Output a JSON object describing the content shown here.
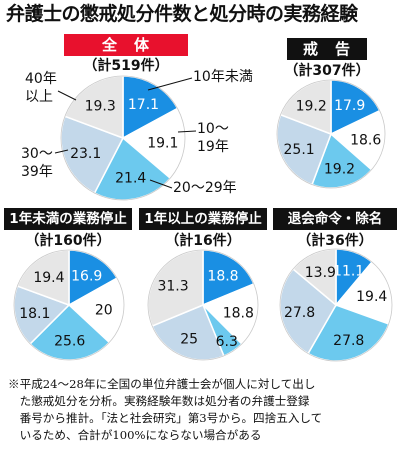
{
  "title": "弁護士の懲戒処分件数と処分時の実務経験",
  "colors": {
    "seg1": "#1a8fe3",
    "seg2": "#ffffff",
    "seg3": "#6cc9ee",
    "seg4": "#c3d8ea",
    "seg5": "#e6e6e6",
    "red": "#e8112d",
    "black": "#111111"
  },
  "chart_data": [
    {
      "type": "pie",
      "title": "全　体",
      "total": "（計519件）",
      "categories": [
        "10年未満",
        "10～19年",
        "20～29年",
        "30～39年",
        "40年以上"
      ],
      "values": [
        17.1,
        19.1,
        21.4,
        23.1,
        19.3
      ],
      "labels": [
        "17.1",
        "19.1",
        "21.4",
        "23.1",
        "19.3"
      ]
    },
    {
      "type": "pie",
      "title": "戒　告",
      "total": "（計307件）",
      "values": [
        17.9,
        18.6,
        19.2,
        25.1,
        19.2
      ],
      "labels": [
        "17.9",
        "18.6",
        "19.2",
        "25.1",
        "19.2"
      ]
    },
    {
      "type": "pie",
      "title": "1年未満の業務停止",
      "total": "（計160件）",
      "values": [
        16.9,
        20.0,
        25.6,
        18.1,
        19.4
      ],
      "labels": [
        "16.9",
        "20",
        "25.6",
        "18.1",
        "19.4"
      ]
    },
    {
      "type": "pie",
      "title": "1年以上の業務停止",
      "total": "（計16件）",
      "values": [
        18.8,
        18.8,
        6.3,
        25.0,
        31.3
      ],
      "labels": [
        "18.8",
        "18.8",
        "6.3",
        "25",
        "31.3"
      ]
    },
    {
      "type": "pie",
      "title": "退会命令・除名",
      "total": "（計36件）",
      "values": [
        11.1,
        19.4,
        27.8,
        27.8,
        13.9
      ],
      "labels": [
        "11.1",
        "19.4",
        "27.8",
        "27.8",
        "13.9"
      ]
    }
  ],
  "legend_labels": {
    "under10": "10年未満",
    "y10_19_a": "10～",
    "y10_19_b": "19年",
    "y20_29": "20～29年",
    "y30_39_a": "30～",
    "y30_39_b": "39年",
    "over40_a": "40年",
    "over40_b": "以上"
  },
  "note": [
    "※平成24～28年に全国の単位弁護士会が個人に対して出し",
    "　た懲戒処分を分析。実務経験年数は処分者の弁護士登録",
    "　番号から推計。「法と社会研究」第3号から。四捨五入して",
    "　いるため、合計が100%にならない場合がある"
  ]
}
